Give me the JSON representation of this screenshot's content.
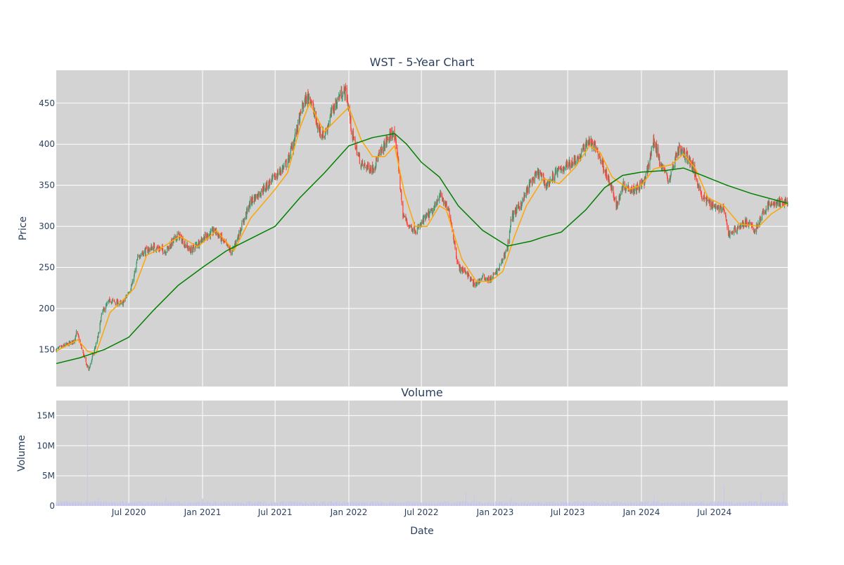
{
  "colors": {
    "plot_bg": "#d3d3d3",
    "increasing": "#3d9970",
    "decreasing": "#ff4136",
    "ma_short": "#ffa500",
    "ma_long": "#008000",
    "volume": "#c7c7ec",
    "text": "#2a3f5f",
    "grid": "#ffffff"
  },
  "chart_data": [
    {
      "type": "candlestick",
      "title": "WST - 5-Year Chart",
      "xlabel": "",
      "ylabel": "Price",
      "x_range": [
        "2020-01-02",
        "2024-12-31"
      ],
      "ylim": [
        105,
        490
      ],
      "grid": true,
      "x_ticks": [
        {
          "date": "2020-07-01",
          "label": ""
        },
        {
          "date": "2021-01-01",
          "label": ""
        },
        {
          "date": "2021-07-01",
          "label": ""
        },
        {
          "date": "2022-01-01",
          "label": ""
        },
        {
          "date": "2022-07-01",
          "label": ""
        },
        {
          "date": "2023-01-01",
          "label": ""
        },
        {
          "date": "2023-07-01",
          "label": ""
        },
        {
          "date": "2024-01-01",
          "label": ""
        },
        {
          "date": "2024-07-01",
          "label": ""
        }
      ],
      "y_ticks": [
        150,
        200,
        250,
        300,
        350,
        400,
        450
      ],
      "close_anchors": [
        [
          "2020-01-02",
          150
        ],
        [
          "2020-02-15",
          160
        ],
        [
          "2020-02-22",
          172
        ],
        [
          "2020-03-15",
          135
        ],
        [
          "2020-03-23",
          125
        ],
        [
          "2020-04-15",
          165
        ],
        [
          "2020-04-25",
          195
        ],
        [
          "2020-05-15",
          210
        ],
        [
          "2020-06-15",
          205
        ],
        [
          "2020-07-10",
          230
        ],
        [
          "2020-07-25",
          265
        ],
        [
          "2020-09-01",
          275
        ],
        [
          "2020-10-01",
          270
        ],
        [
          "2020-11-01",
          290
        ],
        [
          "2020-12-01",
          270
        ],
        [
          "2021-01-01",
          285
        ],
        [
          "2021-02-01",
          295
        ],
        [
          "2021-03-15",
          268
        ],
        [
          "2021-04-01",
          290
        ],
        [
          "2021-05-01",
          330
        ],
        [
          "2021-06-01",
          345
        ],
        [
          "2021-07-01",
          360
        ],
        [
          "2021-08-01",
          378
        ],
        [
          "2021-08-20",
          410
        ],
        [
          "2021-09-10",
          450
        ],
        [
          "2021-09-25",
          460
        ],
        [
          "2021-10-15",
          420
        ],
        [
          "2021-11-01",
          410
        ],
        [
          "2021-11-20",
          440
        ],
        [
          "2021-12-10",
          460
        ],
        [
          "2021-12-25",
          465
        ],
        [
          "2022-01-10",
          410
        ],
        [
          "2022-02-01",
          375
        ],
        [
          "2022-03-01",
          370
        ],
        [
          "2022-04-01",
          400
        ],
        [
          "2022-04-20",
          415
        ],
        [
          "2022-05-01",
          395
        ],
        [
          "2022-05-15",
          315
        ],
        [
          "2022-06-01",
          300
        ],
        [
          "2022-06-20",
          295
        ],
        [
          "2022-07-10",
          310
        ],
        [
          "2022-08-01",
          320
        ],
        [
          "2022-08-15",
          340
        ],
        [
          "2022-09-10",
          315
        ],
        [
          "2022-10-01",
          250
        ],
        [
          "2022-10-20",
          245
        ],
        [
          "2022-11-10",
          228
        ],
        [
          "2022-12-01",
          238
        ],
        [
          "2022-12-20",
          235
        ],
        [
          "2023-01-10",
          248
        ],
        [
          "2023-02-01",
          275
        ],
        [
          "2023-02-10",
          310
        ],
        [
          "2023-03-10",
          330
        ],
        [
          "2023-04-01",
          355
        ],
        [
          "2023-04-20",
          365
        ],
        [
          "2023-05-10",
          350
        ],
        [
          "2023-06-01",
          365
        ],
        [
          "2023-07-01",
          375
        ],
        [
          "2023-08-01",
          385
        ],
        [
          "2023-08-20",
          405
        ],
        [
          "2023-09-10",
          395
        ],
        [
          "2023-10-01",
          370
        ],
        [
          "2023-10-15",
          350
        ],
        [
          "2023-11-01",
          325
        ],
        [
          "2023-11-15",
          350
        ],
        [
          "2023-12-15",
          345
        ],
        [
          "2024-01-10",
          355
        ],
        [
          "2024-02-01",
          405
        ],
        [
          "2024-02-15",
          380
        ],
        [
          "2024-03-10",
          355
        ],
        [
          "2024-04-01",
          395
        ],
        [
          "2024-04-25",
          385
        ],
        [
          "2024-05-10",
          370
        ],
        [
          "2024-06-01",
          335
        ],
        [
          "2024-07-01",
          325
        ],
        [
          "2024-07-25",
          320
        ],
        [
          "2024-08-05",
          290
        ],
        [
          "2024-09-01",
          300
        ],
        [
          "2024-09-20",
          305
        ],
        [
          "2024-10-10",
          295
        ],
        [
          "2024-10-25",
          310
        ],
        [
          "2024-11-10",
          325
        ],
        [
          "2024-12-01",
          328
        ],
        [
          "2024-12-31",
          330
        ]
      ],
      "series": [
        {
          "name": "",
          "kind": "moving-average-short",
          "points": [
            [
              "2020-01-02",
              148
            ],
            [
              "2020-02-25",
              162
            ],
            [
              "2020-03-20",
              148
            ],
            [
              "2020-04-10",
              145
            ],
            [
              "2020-05-15",
              195
            ],
            [
              "2020-06-20",
              212
            ],
            [
              "2020-07-15",
              225
            ],
            [
              "2020-08-15",
              265
            ],
            [
              "2020-09-15",
              272
            ],
            [
              "2020-11-05",
              288
            ],
            [
              "2020-12-20",
              275
            ],
            [
              "2021-02-05",
              295
            ],
            [
              "2021-03-20",
              270
            ],
            [
              "2021-05-01",
              310
            ],
            [
              "2021-07-01",
              345
            ],
            [
              "2021-08-01",
              365
            ],
            [
              "2021-09-01",
              420
            ],
            [
              "2021-09-25",
              450
            ],
            [
              "2021-11-01",
              415
            ],
            [
              "2021-12-01",
              430
            ],
            [
              "2022-01-01",
              445
            ],
            [
              "2022-02-01",
              405
            ],
            [
              "2022-03-01",
              385
            ],
            [
              "2022-04-01",
              385
            ],
            [
              "2022-04-25",
              398
            ],
            [
              "2022-05-20",
              340
            ],
            [
              "2022-06-15",
              300
            ],
            [
              "2022-07-15",
              300
            ],
            [
              "2022-08-15",
              325
            ],
            [
              "2022-09-01",
              320
            ],
            [
              "2022-10-10",
              260
            ],
            [
              "2022-11-15",
              233
            ],
            [
              "2022-12-20",
              233
            ],
            [
              "2023-01-20",
              245
            ],
            [
              "2023-02-20",
              290
            ],
            [
              "2023-03-20",
              325
            ],
            [
              "2023-05-01",
              358
            ],
            [
              "2023-06-10",
              352
            ],
            [
              "2023-07-20",
              372
            ],
            [
              "2023-08-25",
              398
            ],
            [
              "2023-09-20",
              390
            ],
            [
              "2023-10-20",
              360
            ],
            [
              "2023-12-01",
              345
            ],
            [
              "2024-01-01",
              350
            ],
            [
              "2024-02-01",
              370
            ],
            [
              "2024-03-15",
              375
            ],
            [
              "2024-04-15",
              388
            ],
            [
              "2024-05-15",
              370
            ],
            [
              "2024-06-15",
              335
            ],
            [
              "2024-07-25",
              325
            ],
            [
              "2024-09-01",
              303
            ],
            [
              "2024-10-20",
              300
            ],
            [
              "2024-11-20",
              315
            ],
            [
              "2024-12-31",
              328
            ]
          ]
        },
        {
          "name": "",
          "kind": "moving-average-long",
          "points": [
            [
              "2020-01-02",
              133
            ],
            [
              "2020-03-01",
              140
            ],
            [
              "2020-05-01",
              150
            ],
            [
              "2020-07-01",
              165
            ],
            [
              "2020-09-01",
              198
            ],
            [
              "2020-11-01",
              228
            ],
            [
              "2021-01-01",
              250
            ],
            [
              "2021-03-01",
              270
            ],
            [
              "2021-05-01",
              285
            ],
            [
              "2021-07-01",
              300
            ],
            [
              "2021-09-01",
              335
            ],
            [
              "2021-11-01",
              365
            ],
            [
              "2022-01-01",
              398
            ],
            [
              "2022-03-01",
              408
            ],
            [
              "2022-04-25",
              413
            ],
            [
              "2022-05-25",
              400
            ],
            [
              "2022-07-01",
              378
            ],
            [
              "2022-08-15",
              360
            ],
            [
              "2022-10-01",
              325
            ],
            [
              "2022-12-01",
              295
            ],
            [
              "2023-02-01",
              276
            ],
            [
              "2023-04-01",
              282
            ],
            [
              "2023-05-01",
              287
            ],
            [
              "2023-06-15",
              293
            ],
            [
              "2023-08-15",
              320
            ],
            [
              "2023-10-01",
              347
            ],
            [
              "2023-11-15",
              362
            ],
            [
              "2024-01-01",
              366
            ],
            [
              "2024-03-01",
              368
            ],
            [
              "2024-04-15",
              371
            ],
            [
              "2024-06-01",
              362
            ],
            [
              "2024-08-01",
              350
            ],
            [
              "2024-10-01",
              340
            ],
            [
              "2024-12-31",
              328
            ]
          ]
        }
      ]
    },
    {
      "type": "bar",
      "title": "Volume",
      "xlabel": "Date",
      "ylabel": "Volume",
      "x_range": [
        "2020-01-02",
        "2024-12-31"
      ],
      "ylim": [
        0,
        17500000
      ],
      "grid": true,
      "x_ticks": [
        {
          "date": "2020-07-01",
          "label": "Jul 2020"
        },
        {
          "date": "2021-01-01",
          "label": "Jan 2021"
        },
        {
          "date": "2021-07-01",
          "label": "Jul 2021"
        },
        {
          "date": "2022-01-01",
          "label": "Jan 2022"
        },
        {
          "date": "2022-07-01",
          "label": "Jul 2022"
        },
        {
          "date": "2023-01-01",
          "label": "Jan 2023"
        },
        {
          "date": "2023-07-01",
          "label": "Jul 2023"
        },
        {
          "date": "2024-01-01",
          "label": "Jan 2024"
        },
        {
          "date": "2024-07-01",
          "label": "Jul 2024"
        }
      ],
      "y_ticks": [
        {
          "value": 0,
          "label": "0"
        },
        {
          "value": 5000000,
          "label": "5M"
        },
        {
          "value": 10000000,
          "label": "10M"
        },
        {
          "value": 15000000,
          "label": "15M"
        }
      ],
      "typical_volume": 550000,
      "spikes": [
        [
          "2020-03-20",
          16800000
        ],
        [
          "2020-04-15",
          1300000
        ],
        [
          "2020-10-01",
          1600000
        ],
        [
          "2021-01-01",
          1200000
        ],
        [
          "2022-10-20",
          2200000
        ],
        [
          "2022-11-10",
          1800000
        ],
        [
          "2023-02-10",
          1400000
        ],
        [
          "2024-02-01",
          1700000
        ],
        [
          "2024-07-25",
          3500000
        ],
        [
          "2024-10-25",
          2300000
        ],
        [
          "2024-12-20",
          2400000
        ]
      ]
    }
  ]
}
